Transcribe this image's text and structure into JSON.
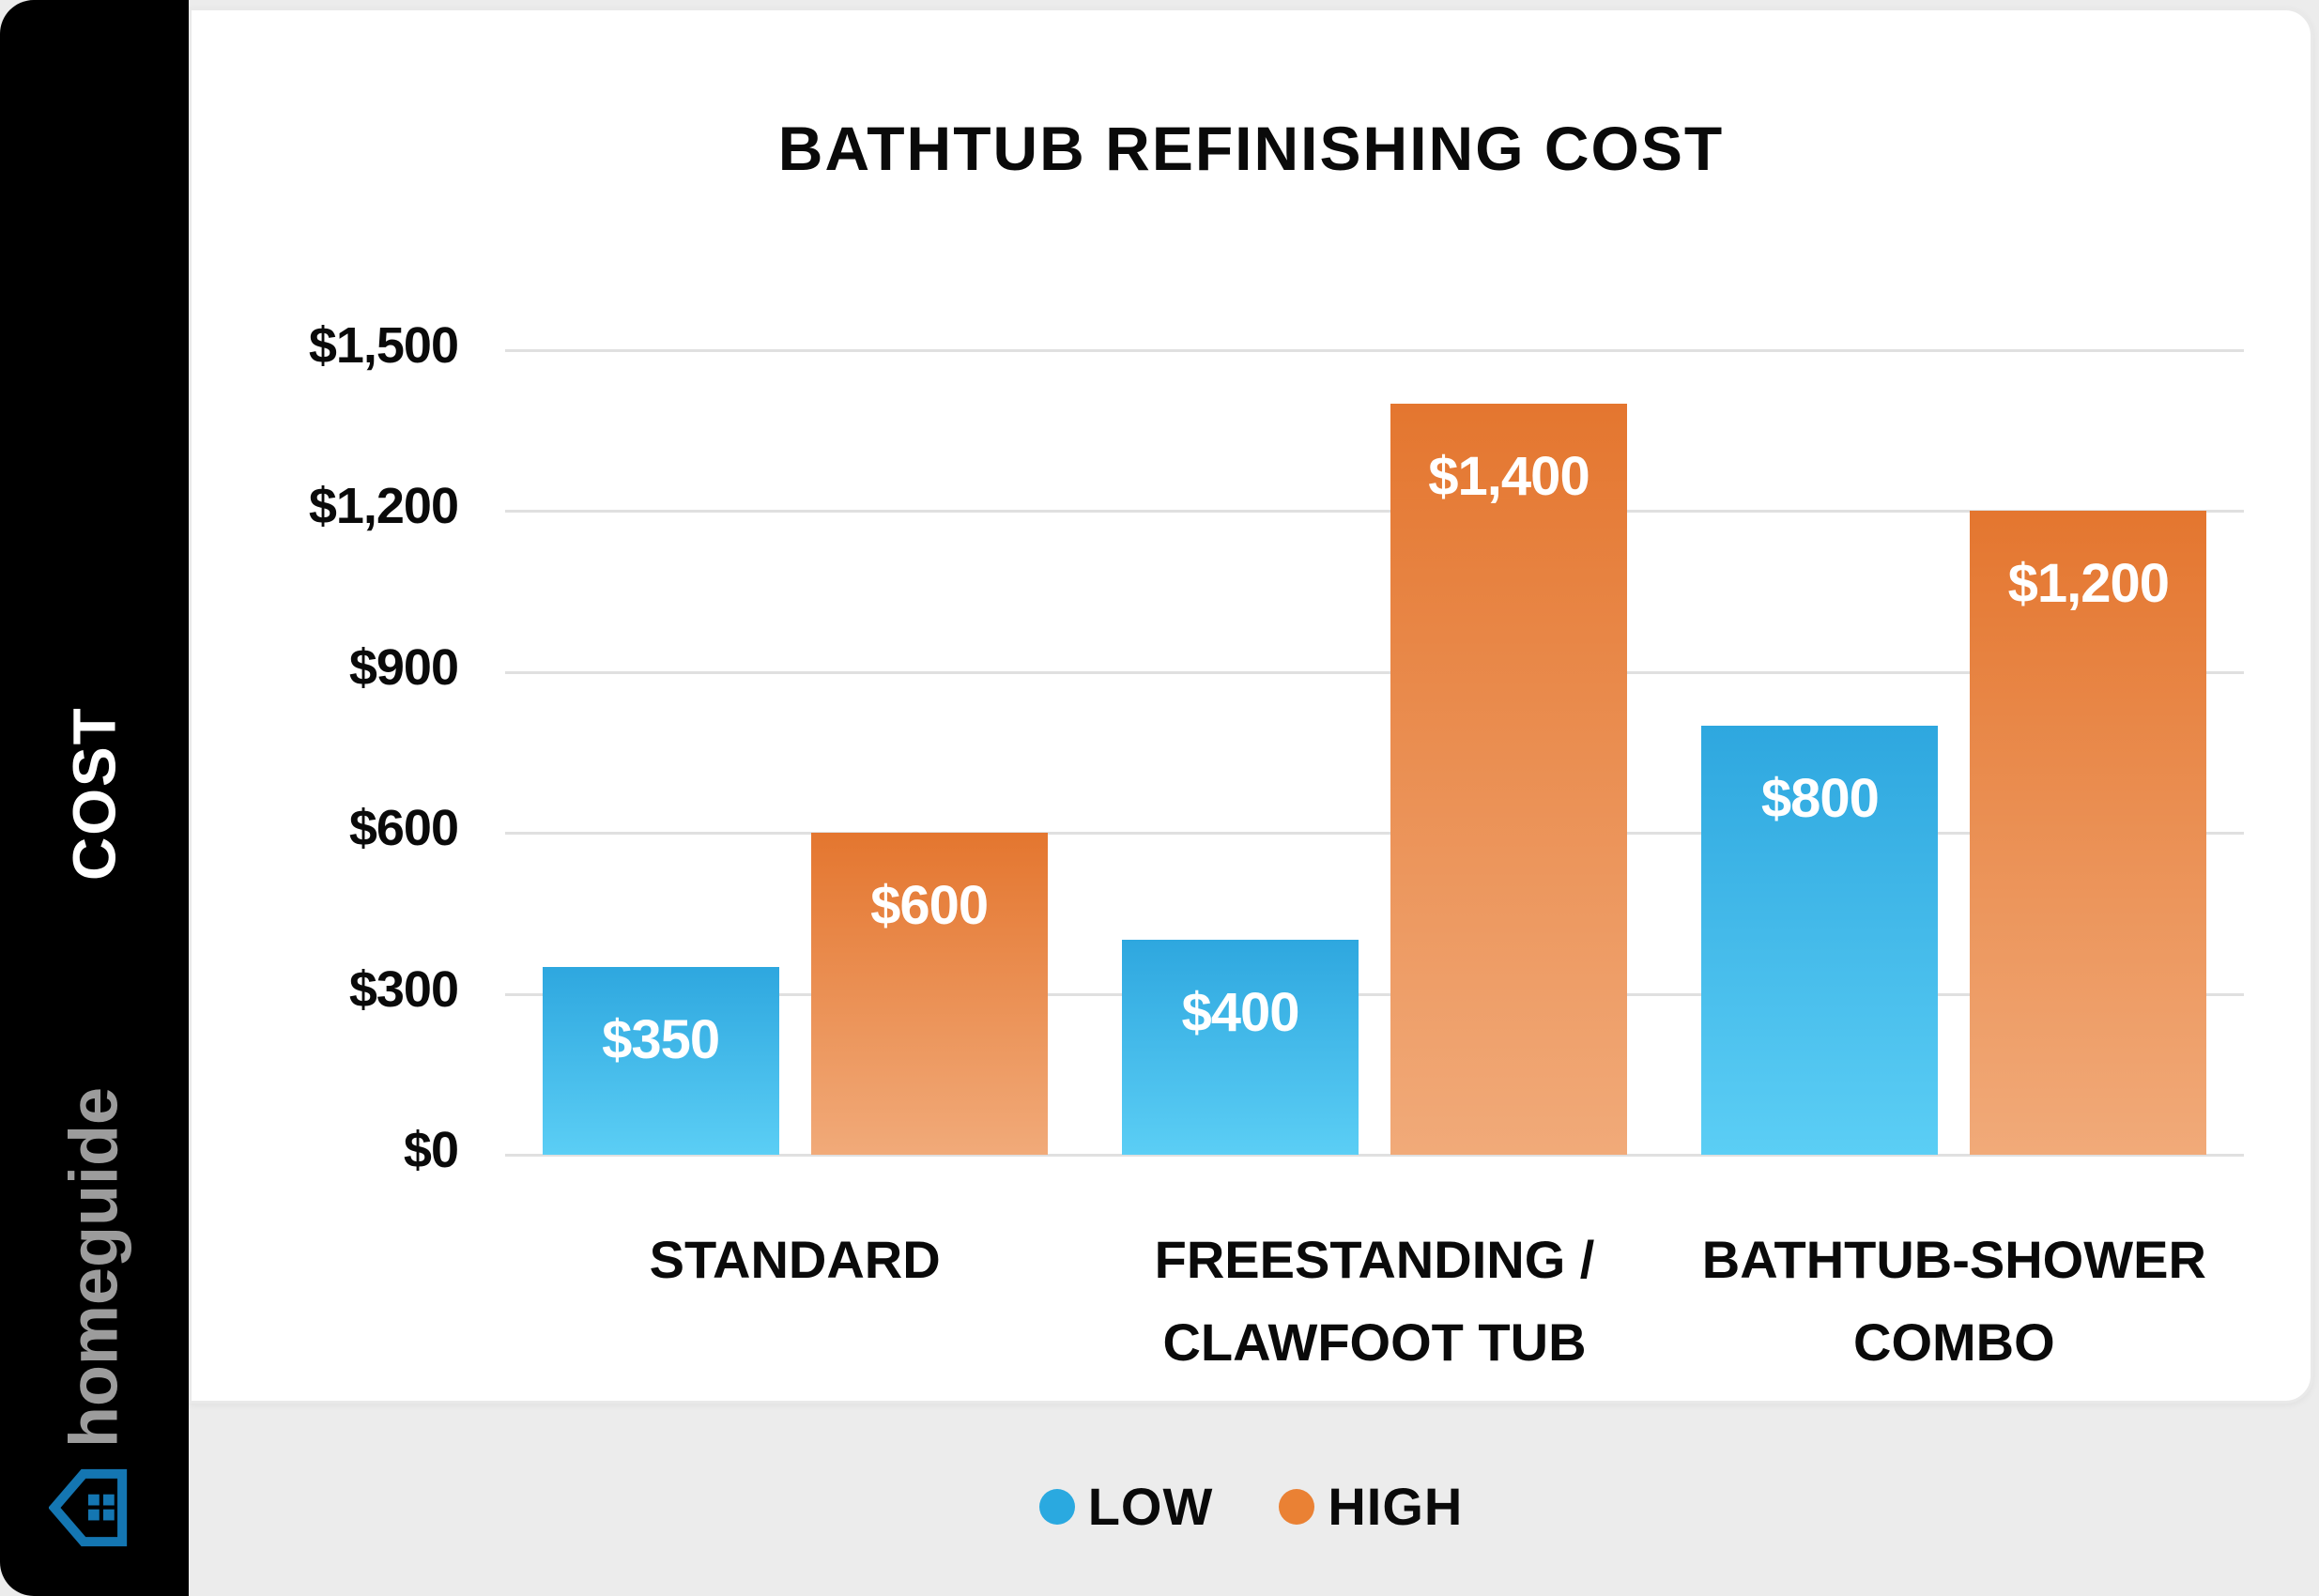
{
  "sidebar": {
    "axis_label": "COST",
    "brand": "homeguide",
    "brand_color": "#9c9c9c",
    "icon_color": "#1476b2"
  },
  "chart_data": {
    "type": "bar",
    "title": "BATHTUB REFINISHING COST",
    "categories": [
      "STANDARD",
      "FREESTANDING /\nCLAWFOOT TUB",
      "BATHTUB-SHOWER\nCOMBO"
    ],
    "series": [
      {
        "name": "LOW",
        "values": [
          350,
          400,
          800
        ],
        "labels": [
          "$350",
          "$400",
          "$800"
        ],
        "gradient_top": "#2ea7df",
        "gradient_bottom": "#5bcef5"
      },
      {
        "name": "HIGH",
        "values": [
          600,
          1400,
          1200
        ],
        "labels": [
          "$600",
          "$1,400",
          "$1,200"
        ],
        "gradient_top": "#e4762f",
        "gradient_bottom": "#f1aa79"
      }
    ],
    "y_ticks": [
      {
        "value": 1500,
        "label": "$1,500"
      },
      {
        "value": 1200,
        "label": "$1,200"
      },
      {
        "value": 900,
        "label": "$900"
      },
      {
        "value": 600,
        "label": "$600"
      },
      {
        "value": 300,
        "label": "$300"
      },
      {
        "value": 0,
        "label": "$0"
      }
    ],
    "ylim": [
      0,
      1500
    ],
    "ylabel": "COST",
    "grid": true,
    "legend_position": "bottom"
  },
  "legend": {
    "items": [
      {
        "label": "LOW",
        "color": "#2aa9e0"
      },
      {
        "label": "HIGH",
        "color": "#ea8134"
      }
    ]
  }
}
